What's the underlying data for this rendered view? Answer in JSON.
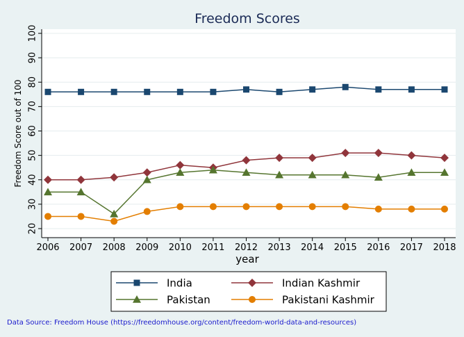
{
  "chart_data": {
    "type": "line",
    "title": "Freedom Scores",
    "xlabel": "year",
    "ylabel": "Freedom Score out of 100",
    "x": [
      2006,
      2007,
      2008,
      2009,
      2010,
      2011,
      2012,
      2013,
      2014,
      2015,
      2016,
      2017,
      2018
    ],
    "xlim": [
      2006,
      2018
    ],
    "ylim": [
      20,
      100
    ],
    "yticks": [
      20,
      30,
      40,
      50,
      60,
      70,
      80,
      90,
      100
    ],
    "grid": "horizontal",
    "legend_position": "bottom",
    "series": [
      {
        "name": "India",
        "color": "#1a476f",
        "marker": "square",
        "values": [
          76,
          76,
          76,
          76,
          76,
          76,
          77,
          76,
          77,
          78,
          77,
          77,
          77
        ]
      },
      {
        "name": "Indian Kashmir",
        "color": "#90353b",
        "marker": "diamond",
        "values": [
          40,
          40,
          41,
          43,
          46,
          45,
          48,
          49,
          49,
          51,
          51,
          50,
          49
        ]
      },
      {
        "name": "Pakistan",
        "color": "#55752f",
        "marker": "triangle",
        "values": [
          35,
          35,
          26,
          40,
          43,
          44,
          43,
          42,
          42,
          42,
          41,
          43,
          43
        ]
      },
      {
        "name": "Pakistani Kashmir",
        "color": "#e37e00",
        "marker": "circle",
        "values": [
          25,
          25,
          23,
          27,
          29,
          29,
          29,
          29,
          29,
          29,
          28,
          28,
          28
        ]
      }
    ]
  },
  "source_note": "Data Source: Freedom House (https://freedomhouse.org/content/freedom-world-data-and-resources)"
}
